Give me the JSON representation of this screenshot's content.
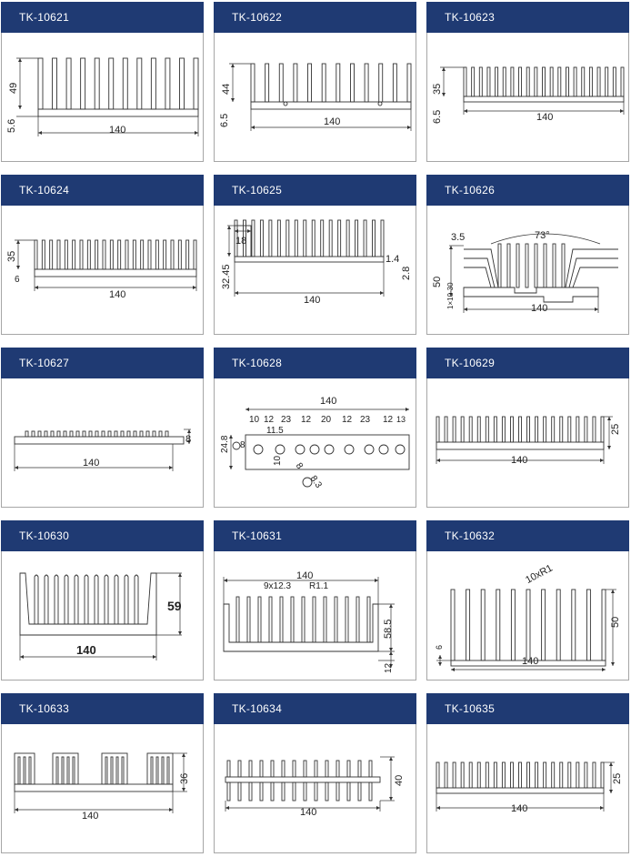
{
  "products": [
    {
      "code": "TK-10621",
      "dims": [
        "49",
        "5.6",
        "140"
      ]
    },
    {
      "code": "TK-10622",
      "dims": [
        "44",
        "6.5",
        "140"
      ]
    },
    {
      "code": "TK-10623",
      "dims": [
        "35",
        "6.5",
        "140"
      ]
    },
    {
      "code": "TK-10624",
      "dims": [
        "35",
        "6",
        "140"
      ]
    },
    {
      "code": "TK-10625",
      "dims": [
        "18",
        "32.45",
        "1.4",
        "2.8",
        "140"
      ]
    },
    {
      "code": "TK-10626",
      "dims": [
        "3.5",
        "73°",
        "50",
        "1×10-30",
        "140"
      ]
    },
    {
      "code": "TK-10627",
      "dims": [
        "8",
        "140"
      ]
    },
    {
      "code": "TK-10628",
      "dims": [
        "140",
        "10",
        "12",
        "23",
        "12",
        "20",
        "12",
        "23",
        "12",
        "13",
        "11.5",
        "24.8",
        "8",
        "10",
        "8",
        "8.3"
      ]
    },
    {
      "code": "TK-10629",
      "dims": [
        "25",
        "140"
      ]
    },
    {
      "code": "TK-10630",
      "dims": [
        "59",
        "140"
      ]
    },
    {
      "code": "TK-10631",
      "dims": [
        "140",
        "9x12.3",
        "R1.1",
        "58.5",
        "12"
      ]
    },
    {
      "code": "TK-10632",
      "dims": [
        "10xR1",
        "50",
        "6",
        "140"
      ]
    },
    {
      "code": "TK-10633",
      "dims": [
        "36",
        "140"
      ]
    },
    {
      "code": "TK-10634",
      "dims": [
        "40",
        "140"
      ]
    },
    {
      "code": "TK-10635",
      "dims": [
        "25",
        "140"
      ]
    }
  ]
}
